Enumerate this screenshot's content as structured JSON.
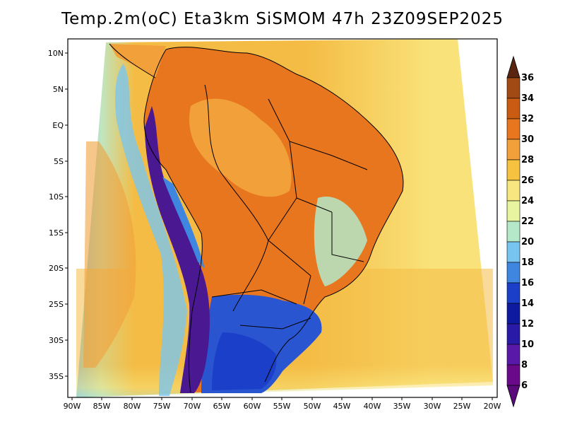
{
  "title": "Temp.2m(oC) Eta3km SiSMOM 47h 23Z09SEP2025",
  "axes": {
    "x_ticks": [
      "90W",
      "85W",
      "80W",
      "75W",
      "70W",
      "65W",
      "60W",
      "55W",
      "50W",
      "45W",
      "40W",
      "35W",
      "30W",
      "25W",
      "20W"
    ],
    "y_ticks": [
      "10N",
      "5N",
      "EQ",
      "5S",
      "10S",
      "15S",
      "20S",
      "25S",
      "30S",
      "35S"
    ]
  },
  "colorbar": {
    "labels": [
      "36",
      "34",
      "32",
      "30",
      "28",
      "26",
      "24",
      "22",
      "20",
      "18",
      "16",
      "14",
      "12",
      "10",
      "8",
      "6"
    ],
    "colors": [
      "#6b2e1a",
      "#a24a14",
      "#c95b12",
      "#e8761e",
      "#f2a03a",
      "#f6c240",
      "#f8e680",
      "#e8f4a0",
      "#b4e8c8",
      "#78c4f0",
      "#3f86e0",
      "#1b3fc8",
      "#0e1aa0",
      "#2a1aa8",
      "#5a18a8",
      "#6a0a8a"
    ],
    "top_arrow_color": "#5a2410",
    "bottom_arrow_color": "#5a0a7a"
  },
  "colors": {
    "ocean_warm": "#f4bc44",
    "ocean_mid": "#f9e27a",
    "ocean_cool": "#bfe6c0",
    "coast_cool": "#7cc6ee",
    "land_hot": "#e8761e",
    "land_warm": "#f2a03a",
    "andes": "#4a1890",
    "south_cold": "#2a55d0",
    "outline": "#000000"
  }
}
